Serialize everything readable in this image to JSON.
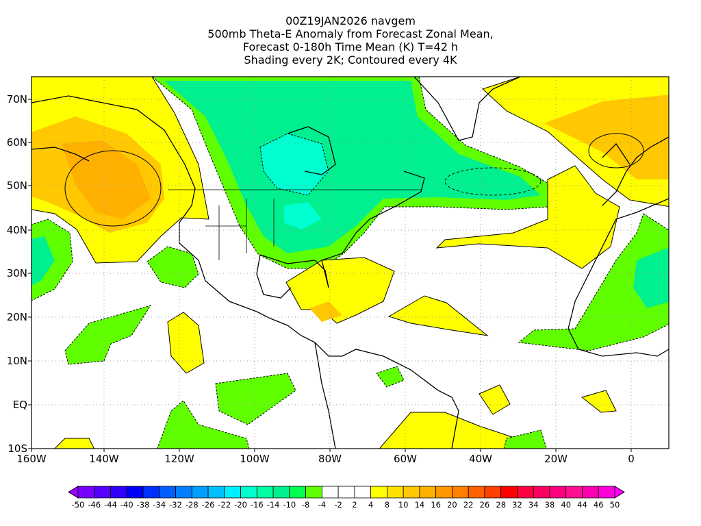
{
  "title": {
    "line1": "00Z19JAN2026 navgem",
    "line2": "500mb Theta-E Anomaly from Forecast Zonal Mean,",
    "line3": "Forecast 0-180h Time Mean (K) T=42 h",
    "line4": "Shading every 2K; Contoured every 4K"
  },
  "map": {
    "lon_labels": [
      "160W",
      "140W",
      "120W",
      "100W",
      "80W",
      "60W",
      "40W",
      "20W",
      "0"
    ],
    "lon_values": [
      -160,
      -140,
      -120,
      -100,
      -80,
      -60,
      -40,
      -20,
      0
    ],
    "lat_labels": [
      "70N",
      "60N",
      "50N",
      "40N",
      "30N",
      "20N",
      "10N",
      "EQ",
      "10S"
    ],
    "lat_values": [
      70,
      60,
      50,
      40,
      30,
      20,
      10,
      0,
      -10
    ],
    "lon_range": [
      -160,
      10
    ],
    "lat_range": [
      -10,
      75
    ]
  },
  "colorbar": {
    "labels": [
      "-50",
      "-46",
      "-44",
      "-40",
      "-38",
      "-34",
      "-32",
      "-28",
      "-26",
      "-22",
      "-20",
      "-16",
      "-14",
      "-10",
      "-8",
      "-4",
      "-2",
      "2",
      "4",
      "8",
      "10",
      "14",
      "16",
      "20",
      "22",
      "26",
      "28",
      "32",
      "34",
      "38",
      "40",
      "44",
      "46",
      "50"
    ],
    "below_color": "#9b00ff",
    "above_color": "#ff00ff",
    "colors": [
      "#7800ff",
      "#5800ff",
      "#3000ff",
      "#0000ff",
      "#0030ff",
      "#0060ff",
      "#0080ff",
      "#00a0ff",
      "#00c0ff",
      "#00f0ff",
      "#00ffd0",
      "#00ffa0",
      "#00f090",
      "#00ff50",
      "#60ff00",
      "#ffffff",
      "#ffffff",
      "#ffffff",
      "#ffff00",
      "#ffe000",
      "#ffc800",
      "#ffb000",
      "#ff9800",
      "#ff8000",
      "#ff6000",
      "#ff4000",
      "#ff0000",
      "#ff0040",
      "#ff0060",
      "#ff0080",
      "#ff1090",
      "#ff00b0",
      "#ff00d8"
    ]
  },
  "shading_colors": {
    "green": "#60ff00",
    "green2": "#00f080",
    "cyan": "#00ffd0",
    "yellow": "#ffff00",
    "gold": "#ffc800",
    "orange": "#ffb000"
  }
}
